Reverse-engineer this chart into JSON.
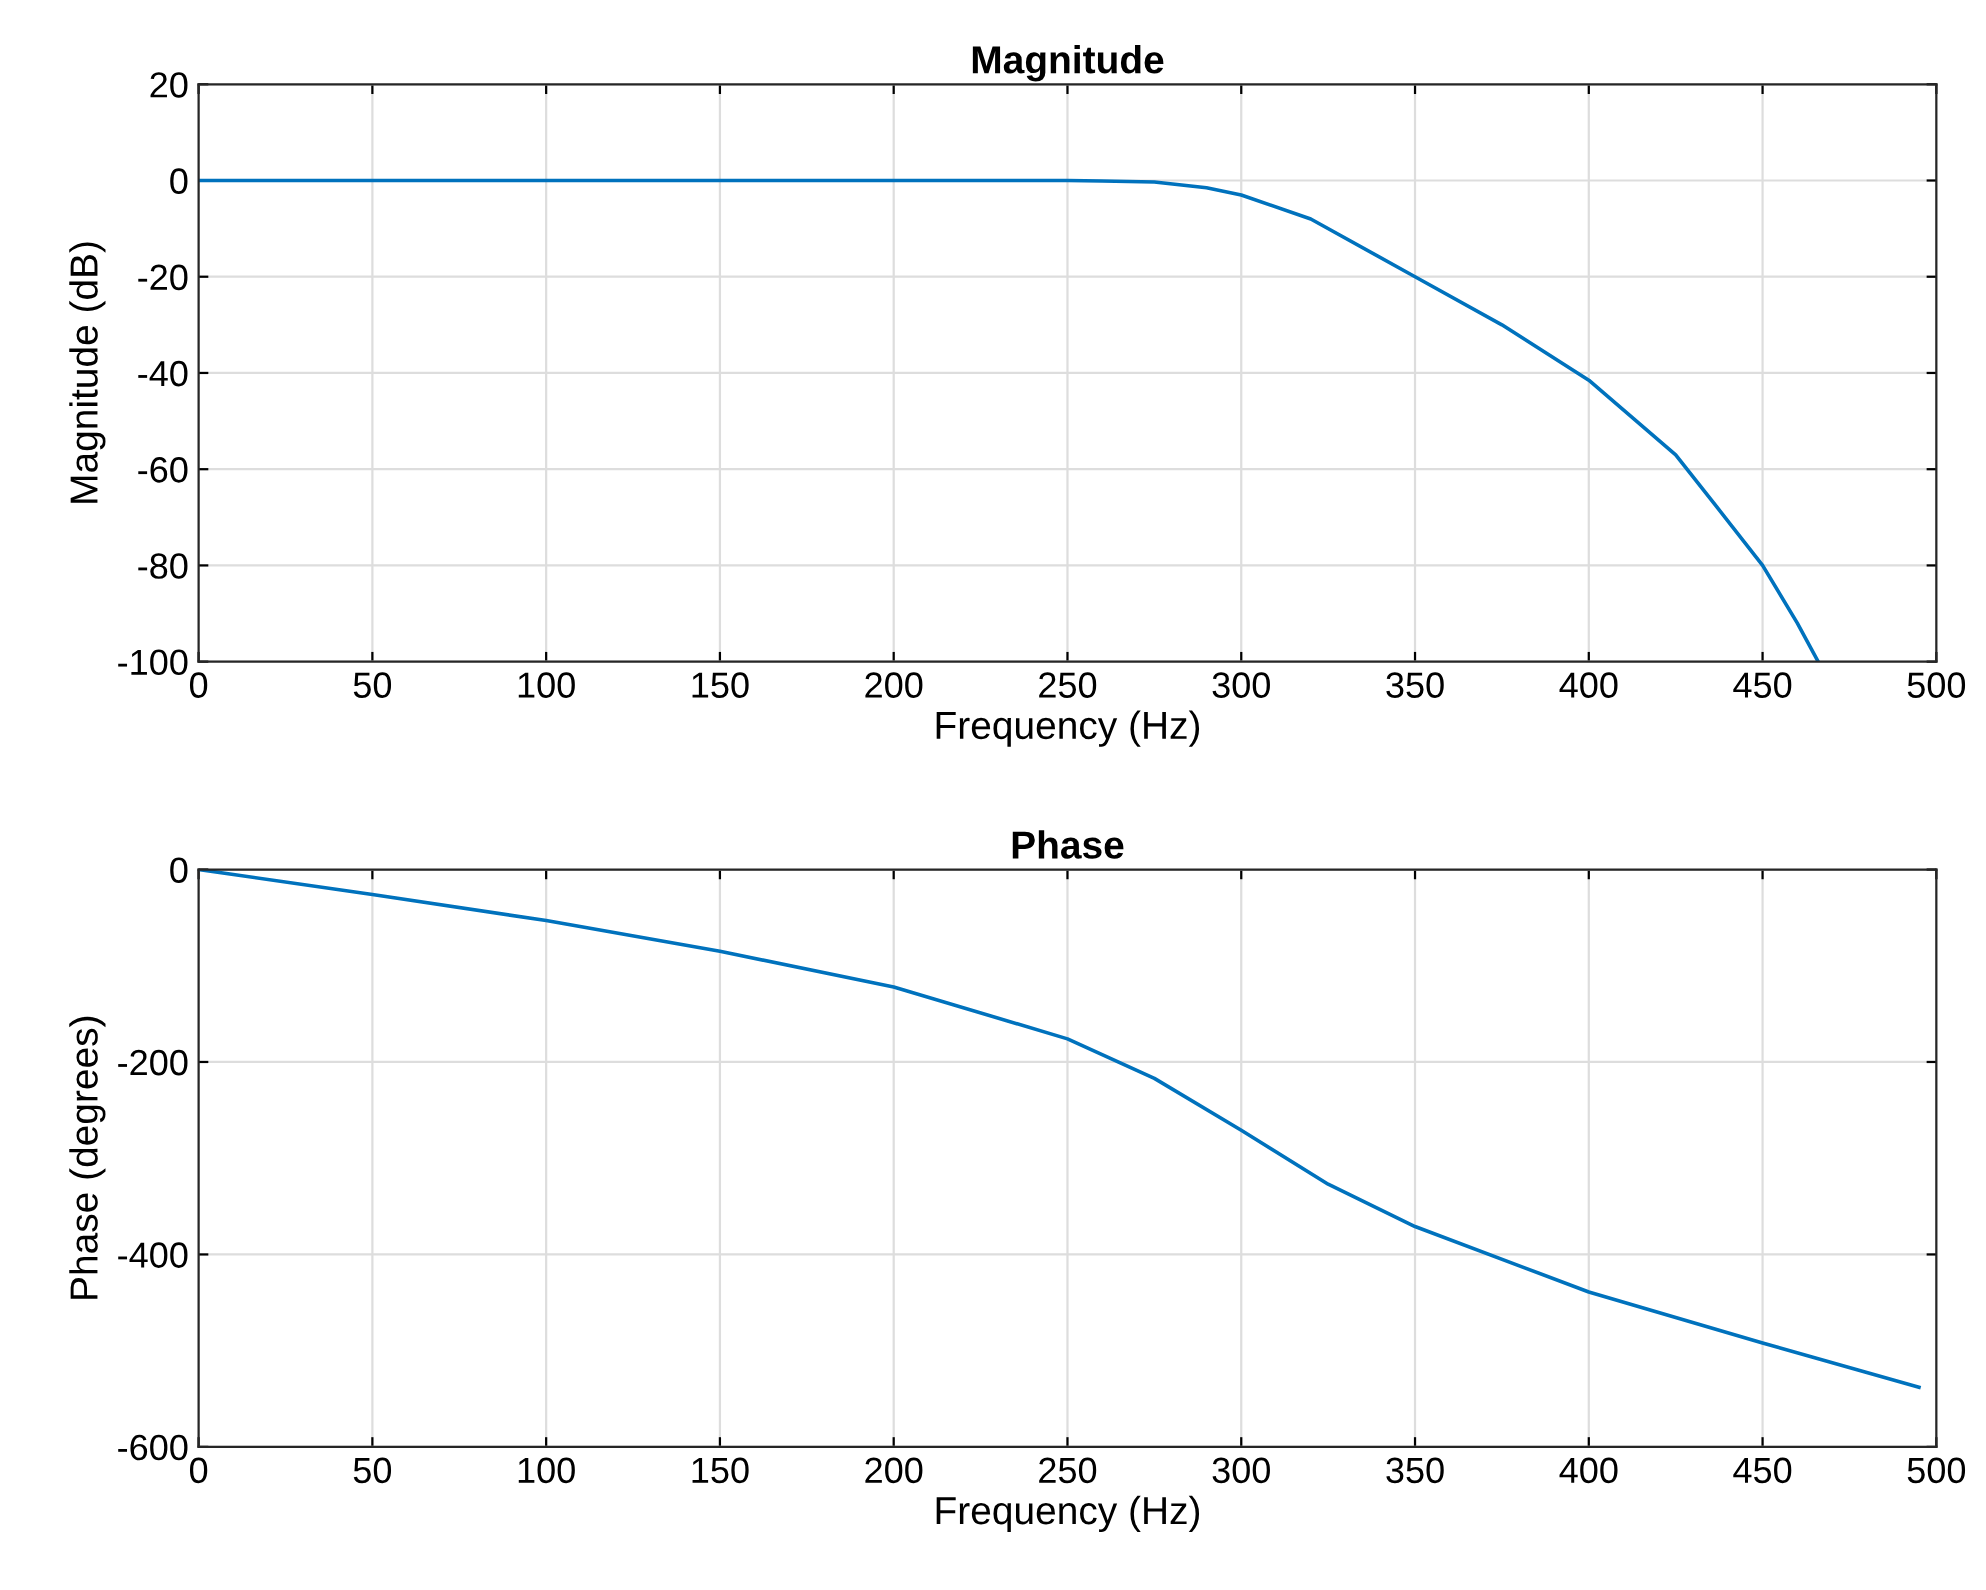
{
  "chart_data": [
    {
      "type": "line",
      "title": "Magnitude",
      "xlabel": "Frequency (Hz)",
      "ylabel": "Magnitude (dB)",
      "x": [
        0,
        50,
        100,
        150,
        200,
        250,
        260,
        275,
        290,
        300,
        320,
        350,
        375,
        400,
        425,
        437,
        450,
        460,
        466
      ],
      "series": [
        {
          "color": "#0072bd",
          "values": [
            0,
            0,
            0,
            0,
            0,
            0,
            -0.1,
            -0.3,
            -1.5,
            -3,
            -8,
            -20,
            -30,
            -41.5,
            -57,
            -68,
            -80,
            -92,
            -100
          ]
        }
      ],
      "xlim": [
        0,
        500
      ],
      "xticks": [
        0,
        50,
        100,
        150,
        200,
        250,
        300,
        350,
        400,
        450,
        500
      ],
      "ylim": [
        -100,
        20
      ],
      "yticks": [
        -100,
        -80,
        -60,
        -40,
        -20,
        0,
        20
      ],
      "grid": true
    },
    {
      "type": "line",
      "title": "Phase",
      "xlabel": "Frequency (Hz)",
      "ylabel": "Phase (degrees)",
      "x": [
        0,
        50,
        100,
        150,
        200,
        250,
        275,
        300,
        325,
        350,
        400,
        450,
        495
      ],
      "series": [
        {
          "color": "#0072bd",
          "values": [
            0,
            -26,
            -53,
            -85,
            -122,
            -176,
            -217,
            -271,
            -327,
            -371,
            -439,
            -492,
            -538
          ]
        }
      ],
      "xlim": [
        0,
        500
      ],
      "xticks": [
        0,
        50,
        100,
        150,
        200,
        250,
        300,
        350,
        400,
        450,
        500
      ],
      "ylim": [
        -600,
        0
      ],
      "yticks": [
        -600,
        -400,
        -200,
        0
      ],
      "grid": true
    }
  ]
}
